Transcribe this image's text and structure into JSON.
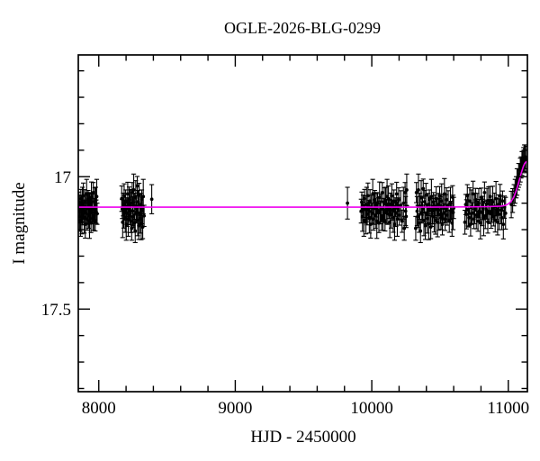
{
  "chart_data": {
    "type": "scatter",
    "title": "OGLE-2026-BLG-0299",
    "xlabel": "HJD - 2450000",
    "ylabel": "I magnitude",
    "xlim": [
      7850,
      11140
    ],
    "ylim": [
      16.54,
      17.812
    ],
    "y_axis_inverted_magnitude": true,
    "x_major_ticks": [
      8000,
      9000,
      10000,
      11000
    ],
    "x_minor_tick_step": 200,
    "y_major_ticks": [
      17,
      17.5
    ],
    "y_minor_tick_step": 0.1,
    "grid": false,
    "baseline_I_mag": 17.12,
    "colors": {
      "points": "#000000",
      "model": "#ee00ee",
      "axes": "#000000"
    },
    "model_curve": [
      [
        7850,
        17.115
      ],
      [
        8600,
        17.115
      ],
      [
        9400,
        17.115
      ],
      [
        10000,
        17.115
      ],
      [
        10400,
        17.115
      ],
      [
        10700,
        17.114
      ],
      [
        10850,
        17.113
      ],
      [
        10950,
        17.111
      ],
      [
        10980,
        17.108
      ],
      [
        11000,
        17.103
      ],
      [
        11020,
        17.094
      ],
      [
        11040,
        17.078
      ],
      [
        11060,
        17.05
      ],
      [
        11080,
        17.014
      ],
      [
        11095,
        16.986
      ],
      [
        11110,
        16.962
      ],
      [
        11120,
        16.95
      ],
      [
        11130,
        16.944
      ],
      [
        11140,
        16.942
      ]
    ],
    "points": [
      [
        7852,
        17.13,
        0.045
      ],
      [
        7855,
        17.096,
        0.038
      ],
      [
        7859,
        17.151,
        0.055
      ],
      [
        7862,
        17.112,
        0.042
      ],
      [
        7866,
        17.165,
        0.06
      ],
      [
        7869,
        17.083,
        0.035
      ],
      [
        7873,
        17.122,
        0.05
      ],
      [
        7876,
        17.172,
        0.044
      ],
      [
        7880,
        17.105,
        0.065
      ],
      [
        7883,
        17.142,
        0.04
      ],
      [
        7887,
        17.072,
        0.048
      ],
      [
        7890,
        17.126,
        0.036
      ],
      [
        7894,
        17.155,
        0.058
      ],
      [
        7897,
        17.092,
        0.043
      ],
      [
        7901,
        17.18,
        0.052
      ],
      [
        7904,
        17.115,
        0.045
      ],
      [
        7908,
        17.138,
        0.038
      ],
      [
        7911,
        17.065,
        0.055
      ],
      [
        7915,
        17.16,
        0.042
      ],
      [
        7918,
        17.12,
        0.06
      ],
      [
        7922,
        17.087,
        0.035
      ],
      [
        7925,
        17.145,
        0.05
      ],
      [
        7929,
        17.108,
        0.044
      ],
      [
        7932,
        17.168,
        0.065
      ],
      [
        7936,
        17.1,
        0.04
      ],
      [
        7939,
        17.128,
        0.048
      ],
      [
        7943,
        17.175,
        0.036
      ],
      [
        7946,
        17.078,
        0.058
      ],
      [
        7950,
        17.135,
        0.043
      ],
      [
        7953,
        17.118,
        0.052
      ],
      [
        7957,
        17.158,
        0.045
      ],
      [
        7960,
        17.06,
        0.038
      ],
      [
        7964,
        17.148,
        0.055
      ],
      [
        7967,
        17.124,
        0.042
      ],
      [
        7971,
        17.102,
        0.06
      ],
      [
        7974,
        17.17,
        0.035
      ],
      [
        7978,
        17.09,
        0.05
      ],
      [
        7981,
        17.132,
        0.044
      ],
      [
        7985,
        17.075,
        0.065
      ],
      [
        7988,
        17.14,
        0.04
      ],
      [
        8168,
        17.083,
        0.048
      ],
      [
        8172,
        17.122,
        0.036
      ],
      [
        8175,
        17.172,
        0.058
      ],
      [
        8179,
        17.105,
        0.043
      ],
      [
        8183,
        17.142,
        0.052
      ],
      [
        8186,
        17.072,
        0.045
      ],
      [
        8190,
        17.126,
        0.038
      ],
      [
        8194,
        17.155,
        0.055
      ],
      [
        8197,
        17.092,
        0.042
      ],
      [
        8201,
        17.18,
        0.06
      ],
      [
        8205,
        17.115,
        0.035
      ],
      [
        8208,
        17.138,
        0.05
      ],
      [
        8212,
        17.065,
        0.044
      ],
      [
        8216,
        17.16,
        0.065
      ],
      [
        8219,
        17.12,
        0.04
      ],
      [
        8223,
        17.087,
        0.048
      ],
      [
        8227,
        17.145,
        0.036
      ],
      [
        8230,
        17.108,
        0.058
      ],
      [
        8234,
        17.168,
        0.043
      ],
      [
        8238,
        17.1,
        0.052
      ],
      [
        8241,
        17.195,
        0.045
      ],
      [
        8245,
        17.06,
        0.038
      ],
      [
        8249,
        17.13,
        0.055
      ],
      [
        8252,
        17.15,
        0.042
      ],
      [
        8256,
        17.05,
        0.06
      ],
      [
        8260,
        17.175,
        0.035
      ],
      [
        8263,
        17.112,
        0.05
      ],
      [
        8267,
        17.205,
        0.044
      ],
      [
        8271,
        17.08,
        0.065
      ],
      [
        8274,
        17.135,
        0.04
      ],
      [
        8278,
        17.122,
        0.048
      ],
      [
        8282,
        17.035,
        0.036
      ],
      [
        8285,
        17.165,
        0.058
      ],
      [
        8289,
        17.095,
        0.043
      ],
      [
        8293,
        17.185,
        0.052
      ],
      [
        8296,
        17.07,
        0.045
      ],
      [
        8300,
        17.14,
        0.038
      ],
      [
        8304,
        17.158,
        0.055
      ],
      [
        8307,
        17.105,
        0.042
      ],
      [
        8311,
        17.178,
        0.06
      ],
      [
        8315,
        17.085,
        0.035
      ],
      [
        8318,
        17.128,
        0.05
      ],
      [
        8322,
        17.19,
        0.044
      ],
      [
        8326,
        17.075,
        0.065
      ],
      [
        8332,
        17.148,
        0.04
      ],
      [
        8388,
        17.085,
        0.055
      ],
      [
        9822,
        17.1,
        0.06
      ],
      [
        9922,
        17.13,
        0.045
      ],
      [
        9927,
        17.096,
        0.038
      ],
      [
        9932,
        17.151,
        0.055
      ],
      [
        9937,
        17.112,
        0.042
      ],
      [
        9942,
        17.165,
        0.06
      ],
      [
        9947,
        17.083,
        0.035
      ],
      [
        9952,
        17.122,
        0.05
      ],
      [
        9957,
        17.172,
        0.044
      ],
      [
        9962,
        17.105,
        0.065
      ],
      [
        9967,
        17.142,
        0.04
      ],
      [
        9972,
        17.072,
        0.048
      ],
      [
        9977,
        17.126,
        0.036
      ],
      [
        9982,
        17.155,
        0.058
      ],
      [
        9987,
        17.092,
        0.043
      ],
      [
        9992,
        17.18,
        0.052
      ],
      [
        9997,
        17.115,
        0.045
      ],
      [
        10002,
        17.138,
        0.038
      ],
      [
        10007,
        17.065,
        0.055
      ],
      [
        10012,
        17.16,
        0.042
      ],
      [
        10017,
        17.12,
        0.06
      ],
      [
        10022,
        17.087,
        0.035
      ],
      [
        10027,
        17.145,
        0.05
      ],
      [
        10032,
        17.108,
        0.044
      ],
      [
        10037,
        17.168,
        0.065
      ],
      [
        10042,
        17.1,
        0.04
      ],
      [
        10047,
        17.128,
        0.048
      ],
      [
        10052,
        17.175,
        0.036
      ],
      [
        10057,
        17.078,
        0.058
      ],
      [
        10062,
        17.135,
        0.043
      ],
      [
        10067,
        17.118,
        0.052
      ],
      [
        10072,
        17.158,
        0.045
      ],
      [
        10077,
        17.06,
        0.038
      ],
      [
        10082,
        17.148,
        0.055
      ],
      [
        10087,
        17.124,
        0.042
      ],
      [
        10092,
        17.102,
        0.06
      ],
      [
        10097,
        17.17,
        0.035
      ],
      [
        10102,
        17.09,
        0.05
      ],
      [
        10107,
        17.132,
        0.044
      ],
      [
        10112,
        17.075,
        0.065
      ],
      [
        10117,
        17.14,
        0.04
      ],
      [
        10122,
        17.083,
        0.048
      ],
      [
        10127,
        17.122,
        0.036
      ],
      [
        10132,
        17.172,
        0.058
      ],
      [
        10137,
        17.105,
        0.043
      ],
      [
        10142,
        17.142,
        0.052
      ],
      [
        10147,
        17.072,
        0.045
      ],
      [
        10152,
        17.126,
        0.038
      ],
      [
        10157,
        17.155,
        0.055
      ],
      [
        10162,
        17.092,
        0.042
      ],
      [
        10167,
        17.18,
        0.06
      ],
      [
        10172,
        17.115,
        0.035
      ],
      [
        10177,
        17.138,
        0.05
      ],
      [
        10182,
        17.065,
        0.044
      ],
      [
        10187,
        17.16,
        0.065
      ],
      [
        10192,
        17.12,
        0.04
      ],
      [
        10197,
        17.087,
        0.045
      ],
      [
        10202,
        17.145,
        0.038
      ],
      [
        10212,
        17.108,
        0.055
      ],
      [
        10222,
        17.168,
        0.042
      ],
      [
        10232,
        17.1,
        0.06
      ],
      [
        10238,
        17.195,
        0.045
      ],
      [
        10244,
        17.06,
        0.038
      ],
      [
        10248,
        17.13,
        0.055
      ],
      [
        10252,
        17.15,
        0.042
      ],
      [
        10256,
        17.05,
        0.06
      ],
      [
        10322,
        17.195,
        0.045
      ],
      [
        10327,
        17.06,
        0.038
      ],
      [
        10332,
        17.13,
        0.055
      ],
      [
        10337,
        17.15,
        0.042
      ],
      [
        10342,
        17.05,
        0.06
      ],
      [
        10347,
        17.175,
        0.035
      ],
      [
        10352,
        17.112,
        0.05
      ],
      [
        10357,
        17.205,
        0.044
      ],
      [
        10362,
        17.08,
        0.065
      ],
      [
        10367,
        17.135,
        0.04
      ],
      [
        10372,
        17.122,
        0.048
      ],
      [
        10377,
        17.045,
        0.036
      ],
      [
        10382,
        17.165,
        0.058
      ],
      [
        10387,
        17.095,
        0.043
      ],
      [
        10392,
        17.185,
        0.052
      ],
      [
        10397,
        17.07,
        0.045
      ],
      [
        10402,
        17.14,
        0.038
      ],
      [
        10407,
        17.158,
        0.055
      ],
      [
        10412,
        17.105,
        0.042
      ],
      [
        10417,
        17.178,
        0.06
      ],
      [
        10422,
        17.085,
        0.035
      ],
      [
        10427,
        17.128,
        0.05
      ],
      [
        10432,
        17.19,
        0.044
      ],
      [
        10437,
        17.075,
        0.065
      ],
      [
        10442,
        17.148,
        0.04
      ],
      [
        10447,
        17.13,
        0.048
      ],
      [
        10452,
        17.096,
        0.036
      ],
      [
        10457,
        17.151,
        0.058
      ],
      [
        10462,
        17.112,
        0.043
      ],
      [
        10467,
        17.165,
        0.052
      ],
      [
        10472,
        17.083,
        0.045
      ],
      [
        10477,
        17.122,
        0.038
      ],
      [
        10482,
        17.172,
        0.055
      ],
      [
        10487,
        17.105,
        0.042
      ],
      [
        10492,
        17.142,
        0.06
      ],
      [
        10497,
        17.072,
        0.035
      ],
      [
        10502,
        17.126,
        0.05
      ],
      [
        10507,
        17.155,
        0.044
      ],
      [
        10512,
        17.092,
        0.065
      ],
      [
        10517,
        17.18,
        0.04
      ],
      [
        10522,
        17.115,
        0.048
      ],
      [
        10527,
        17.138,
        0.036
      ],
      [
        10532,
        17.065,
        0.058
      ],
      [
        10537,
        17.16,
        0.043
      ],
      [
        10542,
        17.12,
        0.052
      ],
      [
        10547,
        17.087,
        0.045
      ],
      [
        10552,
        17.145,
        0.038
      ],
      [
        10560,
        17.108,
        0.055
      ],
      [
        10568,
        17.168,
        0.042
      ],
      [
        10576,
        17.1,
        0.06
      ],
      [
        10582,
        17.128,
        0.035
      ],
      [
        10588,
        17.175,
        0.05
      ],
      [
        10592,
        17.078,
        0.044
      ],
      [
        10596,
        17.135,
        0.065
      ],
      [
        10600,
        17.118,
        0.04
      ],
      [
        10682,
        17.172,
        0.045
      ],
      [
        10688,
        17.105,
        0.038
      ],
      [
        10694,
        17.142,
        0.055
      ],
      [
        10700,
        17.072,
        0.042
      ],
      [
        10706,
        17.126,
        0.06
      ],
      [
        10712,
        17.155,
        0.035
      ],
      [
        10718,
        17.092,
        0.05
      ],
      [
        10724,
        17.18,
        0.044
      ],
      [
        10730,
        17.115,
        0.065
      ],
      [
        10736,
        17.138,
        0.04
      ],
      [
        10742,
        17.065,
        0.048
      ],
      [
        10748,
        17.16,
        0.036
      ],
      [
        10754,
        17.12,
        0.058
      ],
      [
        10760,
        17.087,
        0.043
      ],
      [
        10766,
        17.145,
        0.052
      ],
      [
        10772,
        17.108,
        0.045
      ],
      [
        10778,
        17.168,
        0.038
      ],
      [
        10784,
        17.1,
        0.055
      ],
      [
        10790,
        17.128,
        0.042
      ],
      [
        10796,
        17.175,
        0.06
      ],
      [
        10802,
        17.078,
        0.035
      ],
      [
        10808,
        17.135,
        0.05
      ],
      [
        10814,
        17.118,
        0.044
      ],
      [
        10820,
        17.158,
        0.065
      ],
      [
        10826,
        17.06,
        0.04
      ],
      [
        10832,
        17.148,
        0.048
      ],
      [
        10838,
        17.124,
        0.036
      ],
      [
        10844,
        17.102,
        0.058
      ],
      [
        10850,
        17.17,
        0.043
      ],
      [
        10856,
        17.09,
        0.052
      ],
      [
        10862,
        17.132,
        0.045
      ],
      [
        10868,
        17.075,
        0.038
      ],
      [
        10874,
        17.14,
        0.055
      ],
      [
        10880,
        17.13,
        0.042
      ],
      [
        10886,
        17.096,
        0.06
      ],
      [
        10892,
        17.151,
        0.035
      ],
      [
        10898,
        17.112,
        0.05
      ],
      [
        10904,
        17.165,
        0.044
      ],
      [
        10910,
        17.083,
        0.065
      ],
      [
        10916,
        17.122,
        0.04
      ],
      [
        10922,
        17.172,
        0.048
      ],
      [
        10928,
        17.105,
        0.036
      ],
      [
        10934,
        17.142,
        0.058
      ],
      [
        10940,
        17.072,
        0.043
      ],
      [
        10946,
        17.126,
        0.052
      ],
      [
        10952,
        17.155,
        0.045
      ],
      [
        10958,
        17.092,
        0.038
      ],
      [
        10964,
        17.18,
        0.055
      ],
      [
        10972,
        17.115,
        0.042
      ],
      [
        10980,
        17.138,
        0.06
      ],
      [
        11022,
        17.105,
        0.05
      ],
      [
        11032,
        17.09,
        0.045
      ],
      [
        11042,
        17.07,
        0.04
      ],
      [
        11050,
        17.055,
        0.045
      ],
      [
        11058,
        17.04,
        0.04
      ],
      [
        11064,
        17.02,
        0.05
      ],
      [
        11070,
        17.01,
        0.04
      ],
      [
        11076,
        16.995,
        0.045
      ],
      [
        11082,
        16.99,
        0.04
      ],
      [
        11088,
        16.975,
        0.045
      ],
      [
        11094,
        16.965,
        0.04
      ],
      [
        11100,
        16.95,
        0.045
      ],
      [
        11106,
        16.945,
        0.04
      ],
      [
        11112,
        16.935,
        0.045
      ],
      [
        11118,
        16.93,
        0.05
      ],
      [
        11124,
        16.925,
        0.045
      ],
      [
        11128,
        16.935,
        0.05
      ]
    ]
  }
}
